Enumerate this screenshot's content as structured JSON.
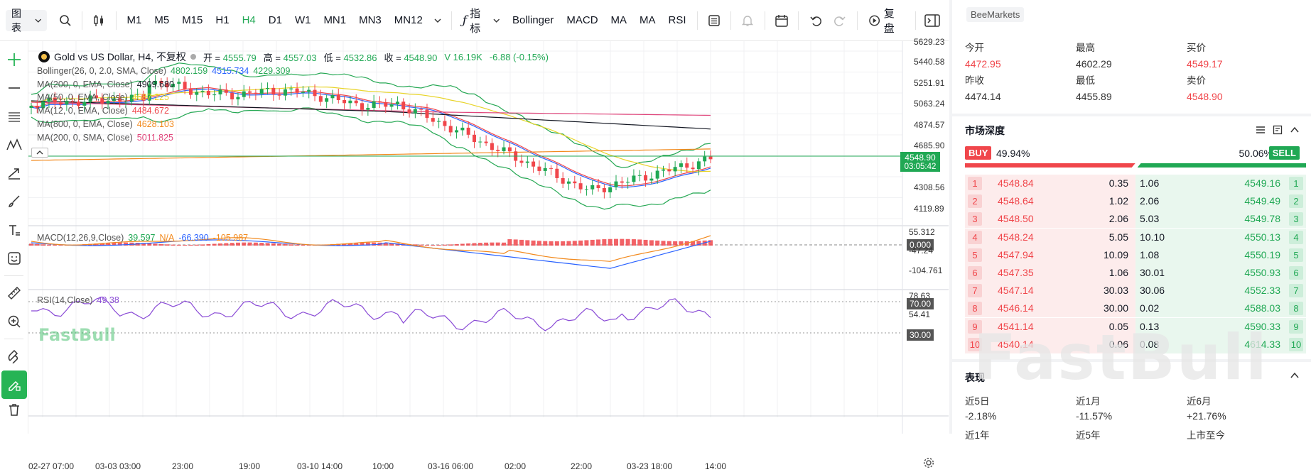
{
  "toolbar": {
    "chart_type": "图表",
    "timeframes": [
      "M1",
      "M5",
      "M15",
      "H1",
      "H4",
      "D1",
      "W1",
      "MN1",
      "MN3",
      "MN12"
    ],
    "active_timeframe": "H4",
    "indicators_label": "指标",
    "quick_indicators": [
      "Bollinger",
      "MACD",
      "MA",
      "MA",
      "RSI"
    ],
    "replay_label": "复盘"
  },
  "legend": {
    "symbol": "Gold vs US Dollar, H4, 不复权",
    "open_label": "开 =",
    "open": "4555.79",
    "high_label": "高 =",
    "high": "4557.03",
    "low_label": "低 =",
    "low": "4532.86",
    "close_label": "收 =",
    "close": "4548.90",
    "volume_label": "V",
    "volume": "16.19K",
    "change": "-6.88 (-0.15%)"
  },
  "indicators": [
    {
      "label": "Bollinger(26, 0, 2.0, SMA, Close)",
      "values": [
        "4802.159",
        "4515.734",
        "4229.309"
      ],
      "colors": [
        "#26a854",
        "#2962ff",
        "#26a854"
      ]
    },
    {
      "label": "MA(200, 0, EMA, Close)",
      "values": [
        "4909.680"
      ],
      "colors": [
        "#131722"
      ]
    },
    {
      "label": "MA(50, 0, EMA, Close)",
      "values": [
        "4687.225"
      ],
      "colors": [
        "#e8d42a"
      ]
    },
    {
      "label": "MA(12, 0, EMA, Close)",
      "values": [
        "4484.672"
      ],
      "colors": [
        "#f0464b"
      ]
    },
    {
      "label": "MA(800, 0, EMA, Close)",
      "values": [
        "4628.103"
      ],
      "colors": [
        "#f28a1e"
      ]
    },
    {
      "label": "MA(200, 0, SMA, Close)",
      "values": [
        "5011.825"
      ],
      "colors": [
        "#e0457b"
      ]
    }
  ],
  "price_axis": [
    "5629.23",
    "5440.58",
    "5251.91",
    "5063.24",
    "4874.57",
    "4685.90",
    "4308.56",
    "4119.89"
  ],
  "last_price": {
    "price": "4548.90",
    "countdown": "03:05:42"
  },
  "macd": {
    "label": "MACD(12,26,9,Close)",
    "hist": "39.597",
    "signal": "N/A",
    "macd": "-66.390",
    "line2": "-105.987",
    "axis": [
      "55.312",
      "0.000",
      "-47.24",
      "-104.761"
    ]
  },
  "rsi": {
    "label": "RSI(14,Close)",
    "value": "49.38",
    "axis": [
      "78.63",
      "70.00",
      "54.41",
      "30.00"
    ]
  },
  "time_axis": [
    "02-27 07:00",
    "03-03 03:00",
    "23:00",
    "19:00",
    "03-10 14:00",
    "10:00",
    "03-16 06:00",
    "02:00",
    "22:00",
    "03-23 18:00",
    "14:00"
  ],
  "watermark": "FastBull",
  "quote": {
    "broker": "BeeMarkets",
    "open_label": "今开",
    "open": "4472.95",
    "high_label": "最高",
    "high": "4602.29",
    "bid_label": "买价",
    "bid": "4549.17",
    "prev_close_label": "昨收",
    "prev_close": "4474.14",
    "low_label": "最低",
    "low": "4455.89",
    "ask_label": "卖价",
    "ask": "4548.90"
  },
  "depth": {
    "title": "市场深度",
    "buy_label": "BUY",
    "buy_pct": "49.94%",
    "sell_label": "SELL",
    "sell_pct": "50.06%",
    "buy_ratio": 0.4994,
    "rows": [
      {
        "n": "1",
        "bid": "4548.84",
        "bid_vol": "0.35",
        "ask_vol": "1.06",
        "ask": "4549.16"
      },
      {
        "n": "2",
        "bid": "4548.64",
        "bid_vol": "1.02",
        "ask_vol": "2.06",
        "ask": "4549.49"
      },
      {
        "n": "3",
        "bid": "4548.50",
        "bid_vol": "2.06",
        "ask_vol": "5.03",
        "ask": "4549.78"
      },
      {
        "n": "4",
        "bid": "4548.24",
        "bid_vol": "5.05",
        "ask_vol": "10.10",
        "ask": "4550.13"
      },
      {
        "n": "5",
        "bid": "4547.94",
        "bid_vol": "10.09",
        "ask_vol": "1.08",
        "ask": "4550.19"
      },
      {
        "n": "6",
        "bid": "4547.35",
        "bid_vol": "1.06",
        "ask_vol": "30.01",
        "ask": "4550.93"
      },
      {
        "n": "7",
        "bid": "4547.14",
        "bid_vol": "30.03",
        "ask_vol": "30.06",
        "ask": "4552.33"
      },
      {
        "n": "8",
        "bid": "4546.14",
        "bid_vol": "30.00",
        "ask_vol": "0.02",
        "ask": "4588.03"
      },
      {
        "n": "9",
        "bid": "4541.14",
        "bid_vol": "0.05",
        "ask_vol": "0.13",
        "ask": "4590.33"
      },
      {
        "n": "10",
        "bid": "4540.14",
        "bid_vol": "0.06",
        "ask_vol": "0.08",
        "ask": "4614.33"
      }
    ]
  },
  "performance": {
    "title": "表现",
    "items": [
      {
        "label": "近5日",
        "value": "-2.18%"
      },
      {
        "label": "近1月",
        "value": "-11.57%"
      },
      {
        "label": "近6月",
        "value": "+21.76%"
      }
    ],
    "more": [
      "近1年",
      "近5年",
      "上市至今"
    ]
  }
}
